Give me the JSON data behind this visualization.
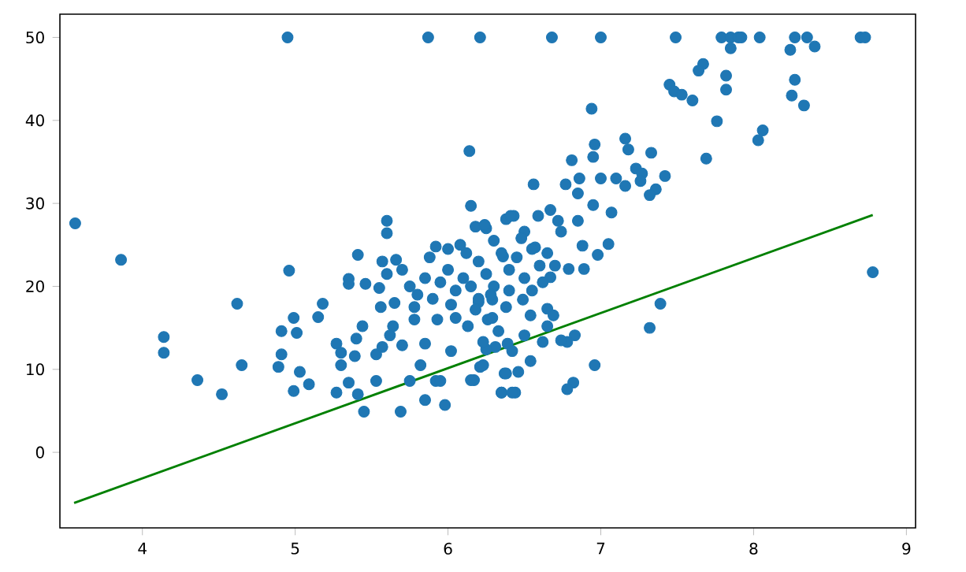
{
  "chart_data": {
    "type": "scatter",
    "xlim": [
      3.46,
      9.06
    ],
    "ylim": [
      -9.1,
      52.8
    ],
    "xticks": [
      4,
      5,
      6,
      7,
      8,
      9
    ],
    "yticks": [
      0,
      10,
      20,
      30,
      40,
      50
    ],
    "grid": false,
    "series": [
      {
        "color": "#1f77b4",
        "marker": "circle",
        "x": [
          4.95,
          5.87,
          6.21,
          6.68,
          7.0,
          7.49,
          7.79,
          7.85,
          7.9,
          7.92,
          8.04,
          8.27,
          8.35,
          8.7,
          8.73,
          7.85,
          8.24,
          8.4,
          7.67,
          7.64,
          7.82,
          7.82,
          8.27,
          8.25,
          8.33,
          7.45,
          7.48,
          7.53,
          7.6,
          7.76,
          8.06,
          8.03,
          7.69,
          6.94,
          6.14,
          6.15,
          6.18,
          6.25,
          3.56,
          3.86,
          4.96,
          5.6,
          5.6,
          5.41,
          5.57,
          5.66,
          5.35,
          6.38,
          6.43,
          6.96,
          6.95,
          7.16,
          7.18,
          7.33,
          7.23,
          7.42,
          7.36,
          7.32,
          7.0,
          7.1,
          7.16,
          7.27,
          7.26,
          6.81,
          6.77,
          6.86,
          6.56,
          6.85,
          6.95,
          7.07,
          7.05,
          6.98,
          6.88,
          6.89,
          6.79,
          6.67,
          6.59,
          6.41,
          6.72,
          6.74,
          6.85,
          6.67,
          6.24,
          6.5,
          6.57,
          6.36,
          8.78,
          7.39,
          7.32,
          6.96,
          6.82,
          6.78,
          6.54,
          6.46,
          6.37,
          6.35,
          6.44,
          6.83,
          6.78,
          6.74,
          6.65,
          6.69,
          6.65,
          6.62,
          6.54,
          6.49,
          6.5,
          6.39,
          6.31,
          6.25,
          6.21,
          6.17,
          6.42,
          6.33,
          6.26,
          6.2,
          6.29,
          4.14,
          4.14,
          4.36,
          4.52,
          4.62,
          4.65,
          4.91,
          4.89,
          4.91,
          4.99,
          5.01,
          5.03,
          4.99,
          5.09,
          5.15,
          5.18,
          5.27,
          5.3,
          5.3,
          5.27,
          5.35,
          5.39,
          5.41,
          5.45,
          5.4,
          5.44,
          5.35,
          5.46,
          5.53,
          5.53,
          5.57,
          5.64,
          5.7,
          5.75,
          5.69,
          5.85,
          5.98,
          5.82,
          5.92,
          5.95,
          5.85,
          5.93,
          6.02,
          6.15,
          6.23,
          6.35,
          6.42,
          6.38,
          5.56,
          5.62,
          5.78,
          6.05,
          6.29,
          6.13,
          6.23,
          5.75,
          5.8,
          5.85,
          5.9,
          5.95,
          6.0,
          6.05,
          6.1,
          6.15,
          6.2,
          6.25,
          6.3,
          6.35,
          6.4,
          6.45,
          6.5,
          6.55,
          6.6,
          5.7,
          5.88,
          6.0,
          6.12,
          6.2,
          6.28,
          6.4,
          5.65,
          5.78,
          5.92,
          6.08,
          6.3,
          6.48,
          6.65,
          6.7,
          5.55,
          5.6,
          6.02,
          6.18,
          6.38,
          6.55,
          6.62
        ],
        "values": [
          50,
          50,
          50,
          50,
          50,
          50,
          50,
          50,
          50,
          50,
          50,
          50,
          50,
          50,
          50,
          48.7,
          48.5,
          48.9,
          46.8,
          46.0,
          45.4,
          43.7,
          44.9,
          43.0,
          41.8,
          44.3,
          43.5,
          43.1,
          42.4,
          39.9,
          38.8,
          37.6,
          35.4,
          41.4,
          36.3,
          29.7,
          27.2,
          27.0,
          27.6,
          23.2,
          21.9,
          27.9,
          26.4,
          23.8,
          23.0,
          23.2,
          20.9,
          28.1,
          28.5,
          37.1,
          35.6,
          37.8,
          36.5,
          36.1,
          34.2,
          33.3,
          31.7,
          31.0,
          33.0,
          33.0,
          32.1,
          33.6,
          32.7,
          35.2,
          32.3,
          33.0,
          32.3,
          31.2,
          29.8,
          28.9,
          25.1,
          23.8,
          24.9,
          22.1,
          22.1,
          21.1,
          28.5,
          28.5,
          27.9,
          26.6,
          27.9,
          29.2,
          27.4,
          26.6,
          24.7,
          23.6,
          21.7,
          17.9,
          15.0,
          10.5,
          8.4,
          7.6,
          11.0,
          9.7,
          9.5,
          7.2,
          7.2,
          14.1,
          13.3,
          13.5,
          17.3,
          16.5,
          15.2,
          13.3,
          16.5,
          18.4,
          14.1,
          13.1,
          12.7,
          12.4,
          10.3,
          8.7,
          12.2,
          14.6,
          16.0,
          18.1,
          18.4,
          13.9,
          12.0,
          8.7,
          7.0,
          17.9,
          10.5,
          14.6,
          10.3,
          11.8,
          16.2,
          14.4,
          9.7,
          7.4,
          8.2,
          16.3,
          17.9,
          13.1,
          12.0,
          10.5,
          7.2,
          8.4,
          11.6,
          7.0,
          4.9,
          13.7,
          15.2,
          20.3,
          20.3,
          8.6,
          11.8,
          12.7,
          15.2,
          12.9,
          8.6,
          4.9,
          6.3,
          5.7,
          10.5,
          8.6,
          8.6,
          13.1,
          16.0,
          12.2,
          8.7,
          10.5,
          7.2,
          7.2,
          9.5,
          17.5,
          14.1,
          16.0,
          16.2,
          16.2,
          15.2,
          13.3,
          20,
          19,
          21,
          18.5,
          20.5,
          22,
          19.5,
          21,
          20,
          23,
          21.5,
          20,
          24,
          22,
          23.5,
          21,
          24.5,
          22.5,
          22,
          23.5,
          24.5,
          24,
          18.5,
          19,
          19.5,
          18,
          17.5,
          24.8,
          25,
          25.5,
          25.8,
          24,
          22.5,
          19.8,
          21.5,
          17.8,
          17.2,
          17.5,
          19.5,
          20.5
        ]
      },
      {
        "type": "line",
        "color": "#008000",
        "marker": "none",
        "line_style": "solid",
        "x": [
          3.553,
          8.78
        ],
        "values": [
          -6.1,
          28.6
        ]
      }
    ]
  }
}
